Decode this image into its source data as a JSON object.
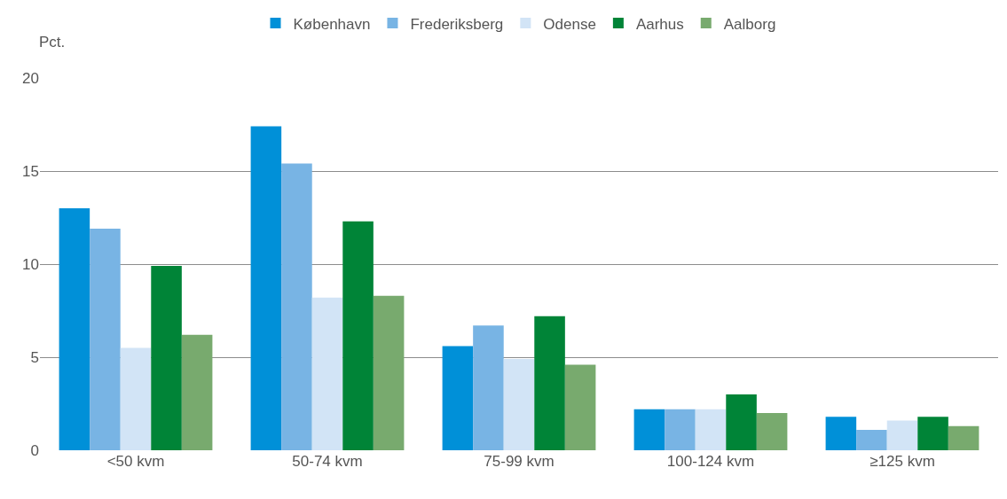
{
  "chart_data": {
    "type": "bar",
    "ylabel": "Pct.",
    "categories": [
      "<50 kvm",
      "50-74 kvm",
      "75-99 kvm",
      "100-124 kvm",
      "≥125 kvm"
    ],
    "series": [
      {
        "name": "København",
        "color": "#0090d8",
        "values": [
          13.0,
          17.4,
          5.6,
          2.2,
          1.8
        ]
      },
      {
        "name": "Frederiksberg",
        "color": "#78b4e4",
        "values": [
          11.9,
          15.4,
          6.7,
          2.2,
          1.1
        ]
      },
      {
        "name": "Odense",
        "color": "#d2e4f6",
        "values": [
          5.5,
          8.2,
          4.9,
          2.2,
          1.6
        ]
      },
      {
        "name": "Aarhus",
        "color": "#008437",
        "values": [
          9.9,
          12.3,
          7.2,
          3.0,
          1.8
        ]
      },
      {
        "name": "Aalborg",
        "color": "#78aa6e",
        "values": [
          6.2,
          8.3,
          4.6,
          2.0,
          1.3
        ]
      }
    ],
    "ylim": [
      0,
      20
    ],
    "yticks": [
      0,
      5,
      10,
      15,
      20
    ],
    "grid": "y",
    "legend": "top"
  }
}
